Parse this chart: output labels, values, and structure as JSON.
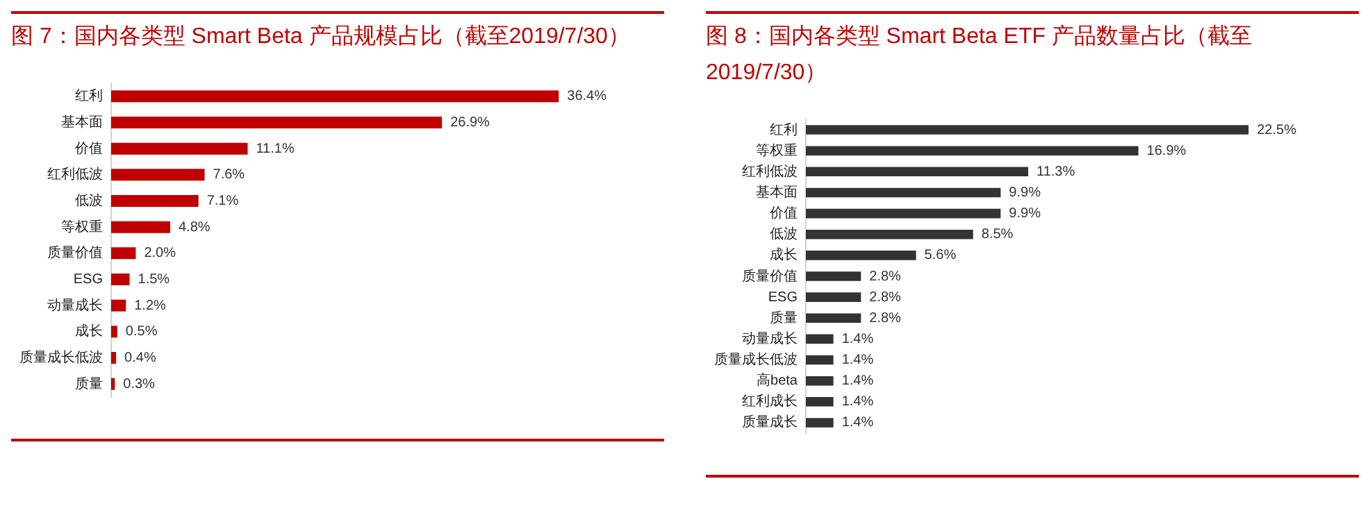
{
  "chart_data": [
    {
      "type": "bar",
      "orientation": "horizontal",
      "title": "图 7：国内各类型 Smart Beta 产品规模占比（截至2019/7/30）",
      "categories": [
        "红利",
        "基本面",
        "价值",
        "红利低波",
        "低波",
        "等权重",
        "质量价值",
        "ESG",
        "动量成长",
        "成长",
        "质量成长低波",
        "质量"
      ],
      "values": [
        36.4,
        26.9,
        11.1,
        7.6,
        7.1,
        4.8,
        2.0,
        1.5,
        1.2,
        0.5,
        0.4,
        0.3
      ],
      "value_labels": [
        "36.4%",
        "26.9%",
        "11.1%",
        "7.6%",
        "7.1%",
        "4.8%",
        "2.0%",
        "1.5%",
        "1.2%",
        "0.5%",
        "0.4%",
        "0.3%"
      ],
      "color": "#c00000"
    },
    {
      "type": "bar",
      "orientation": "horizontal",
      "title": "图 8：国内各类型 Smart Beta ETF 产品数量占比（截至2019/7/30）",
      "categories": [
        "红利",
        "等权重",
        "红利低波",
        "基本面",
        "价值",
        "低波",
        "成长",
        "质量价值",
        "ESG",
        "质量",
        "动量成长",
        "质量成长低波",
        "高beta",
        "红利成长",
        "质量成长"
      ],
      "values": [
        22.5,
        16.9,
        11.3,
        9.9,
        9.9,
        8.5,
        5.6,
        2.8,
        2.8,
        2.8,
        1.4,
        1.4,
        1.4,
        1.4,
        1.4
      ],
      "value_labels": [
        "22.5%",
        "16.9%",
        "11.3%",
        "9.9%",
        "9.9%",
        "8.5%",
        "5.6%",
        "2.8%",
        "2.8%",
        "2.8%",
        "1.4%",
        "1.4%",
        "1.4%",
        "1.4%",
        "1.4%"
      ],
      "color": "#333333"
    }
  ]
}
